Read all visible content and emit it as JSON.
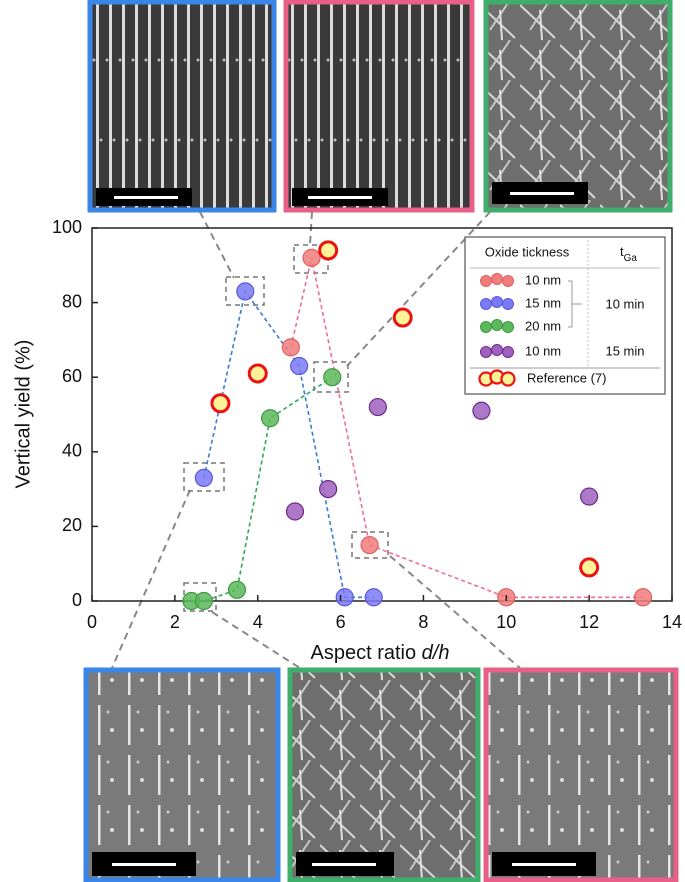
{
  "chart_data": {
    "type": "scatter",
    "xlabel": "Aspect ratio",
    "xlabel_var": "d/h",
    "ylabel": "Vertical yield (%)",
    "xlim": [
      0,
      14
    ],
    "xticks": [
      0,
      2,
      4,
      6,
      8,
      10,
      12,
      14
    ],
    "ylim": [
      0,
      100
    ],
    "yticks": [
      0,
      20,
      40,
      60,
      80,
      100
    ],
    "legend": {
      "header": "Oxide tickness",
      "time_header": "t",
      "time_header_sub": "Ga",
      "times": [
        "10 min",
        "15 min"
      ]
    },
    "series": [
      {
        "name": "10 nm",
        "color": "#f07d7d",
        "stroke": "#e06060",
        "line_color": "#f06a9a",
        "dashed_line": true,
        "x": [
          4.8,
          5.3,
          6.7,
          10,
          13.3
        ],
        "values": [
          68,
          92,
          15,
          1,
          1
        ]
      },
      {
        "name": "15 nm",
        "color": "#7a7af5",
        "stroke": "#5a5ae0",
        "line_color": "#3a7bd5",
        "dashed_line": true,
        "x": [
          2.7,
          3.7,
          5,
          6.1,
          6.8
        ],
        "values": [
          33,
          83,
          63,
          1,
          1
        ]
      },
      {
        "name": "20 nm",
        "color": "#5cb85c",
        "stroke": "#3e9a3e",
        "line_color": "#2eaa55",
        "dashed_line": true,
        "x": [
          2.4,
          2.7,
          3.5,
          4.3,
          5.8
        ],
        "values": [
          0,
          0,
          3,
          49,
          60
        ]
      },
      {
        "name": "10 nm",
        "color": "#a060c0",
        "stroke": "#6a2c8a",
        "dashed_line": false,
        "x": [
          4.9,
          5.7,
          6.9,
          9.4,
          12
        ],
        "values": [
          24,
          30,
          52,
          51,
          28
        ]
      },
      {
        "name": "Reference (7)",
        "color": "#fff39a",
        "stroke": "#ee1111",
        "dashed_line": false,
        "x": [
          3.1,
          4,
          5.7,
          7.5,
          12
        ],
        "values": [
          53,
          61,
          94,
          76,
          9
        ]
      }
    ]
  }
}
